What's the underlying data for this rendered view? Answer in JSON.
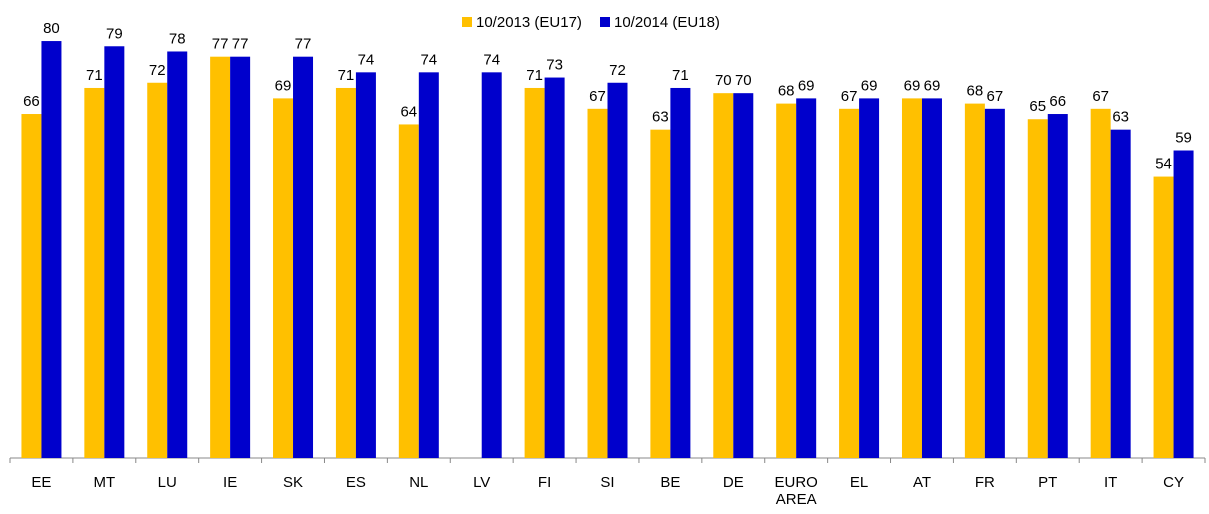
{
  "chart_data": {
    "type": "bar",
    "categories": [
      "EE",
      "MT",
      "LU",
      "IE",
      "SK",
      "ES",
      "NL",
      "LV",
      "FI",
      "SI",
      "BE",
      "DE",
      "EURO AREA",
      "EL",
      "AT",
      "FR",
      "PT",
      "IT",
      "CY"
    ],
    "series": [
      {
        "name": "10/2013 (EU17)",
        "color": "#FFC000",
        "values": [
          66,
          71,
          72,
          77,
          69,
          71,
          64,
          null,
          71,
          67,
          63,
          70,
          68,
          67,
          69,
          68,
          65,
          67,
          54
        ]
      },
      {
        "name": "10/2014 (EU18)",
        "color": "#0000CC",
        "values": [
          80,
          79,
          78,
          77,
          77,
          74,
          74,
          74,
          73,
          72,
          71,
          70,
          69,
          69,
          69,
          67,
          66,
          63,
          59
        ]
      }
    ],
    "ylim": [
      0,
      85
    ],
    "legend": "top"
  }
}
